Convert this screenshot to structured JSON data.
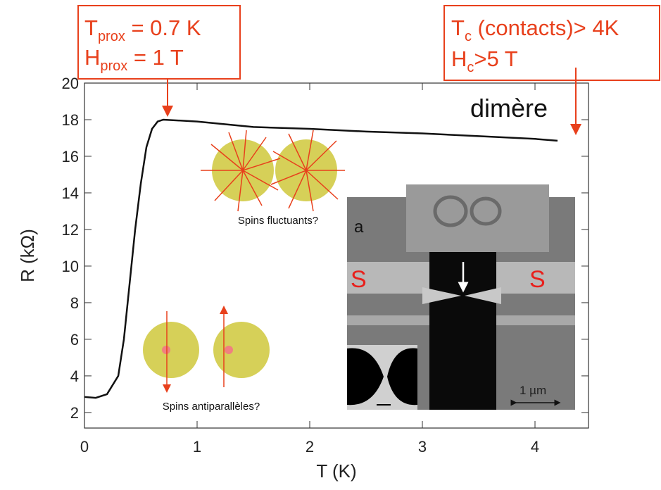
{
  "chart_data": {
    "type": "line",
    "xlabel": "T (K)",
    "ylabel": "R (kΩ)",
    "x": [
      0,
      0.1,
      0.2,
      0.3,
      0.35,
      0.4,
      0.45,
      0.5,
      0.55,
      0.6,
      0.65,
      0.7,
      1.0,
      1.5,
      2.0,
      2.5,
      3.0,
      3.5,
      4.0,
      4.2
    ],
    "values": [
      2.85,
      2.8,
      3.0,
      4.0,
      6.0,
      9.0,
      12.0,
      14.5,
      16.5,
      17.5,
      17.9,
      18.0,
      17.9,
      17.6,
      17.5,
      17.35,
      17.25,
      17.1,
      16.95,
      16.85
    ],
    "color": "#111111",
    "xlim": [
      0,
      4.475
    ],
    "ylim": [
      1.15,
      20
    ],
    "xticks": [
      0,
      1,
      2,
      3,
      4
    ],
    "yticks": [
      2,
      4,
      6,
      8,
      10,
      12,
      14,
      16,
      18,
      20
    ],
    "annotations": {
      "tprox": {
        "main": "T",
        "sub": "prox",
        "rest": " = 0.7 K"
      },
      "hprox": {
        "main": "H",
        "sub": "prox",
        "rest": " = 1 T"
      },
      "tc": {
        "main": "T",
        "sub": "c",
        "rest": " (contacts)> 4K"
      },
      "hc": {
        "main": "H",
        "sub": "c",
        "rest": ">5 T"
      },
      "dimere": "dimère",
      "fluct": "Spins fluctuants?",
      "antipar": "Spins antiparallèles?",
      "s_left": "S",
      "s_right": "S",
      "panel": "a",
      "scale": "1 µm"
    }
  }
}
